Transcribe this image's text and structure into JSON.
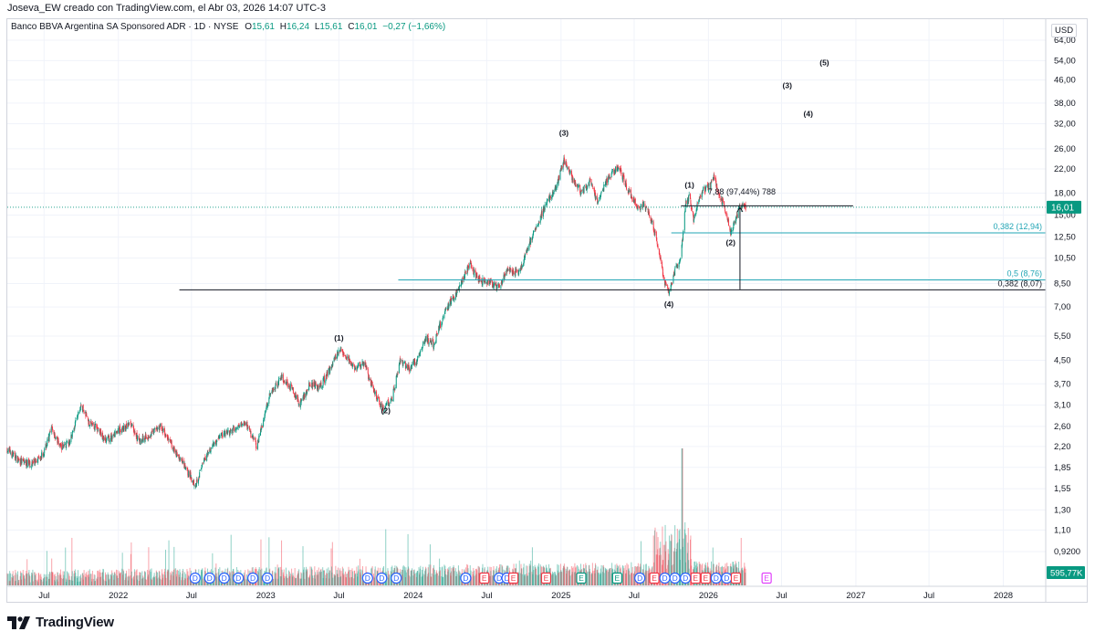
{
  "header": {
    "author_line": "Joseva_EW creado con TradingView.com, el Abr 03, 2026 14:07 UTC-3"
  },
  "legend": {
    "instrument": "Banco BBVA Argentina SA Sponsored ADR · 1D · NYSE",
    "open_label": "O",
    "open": "15,61",
    "high_label": "H",
    "high": "16,24",
    "low_label": "L",
    "low": "15,61",
    "close_label": "C",
    "close": "16,01",
    "change": "−0,27 (−1,66%)"
  },
  "currency": "USD",
  "price_badge": "16,01",
  "volume_badge": "595,77K",
  "brand": {
    "name": "TradingView"
  },
  "colors": {
    "up": "#089981",
    "down": "#f23645",
    "teal": "#22a5b5",
    "line": "#131722",
    "dividend": "#2962ff",
    "earnings_up": "#089981",
    "earnings_down": "#f23645",
    "earnings_future": "#e040fb"
  },
  "chart_data": {
    "type": "candlestick",
    "y_scale": "log",
    "y_ticks": [
      "64,00",
      "54,00",
      "46,00",
      "38,00",
      "32,00",
      "26,00",
      "22,00",
      "18,00",
      "15,00",
      "12,50",
      "10,50",
      "8,50",
      "7,00",
      "5,50",
      "4,50",
      "3,70",
      "3,10",
      "2,60",
      "2,20",
      "1,85",
      "1,55",
      "1,30",
      "1,10",
      "0,9200"
    ],
    "x_ticks": [
      "Jul",
      "2022",
      "Jul",
      "2023",
      "Jul",
      "2024",
      "Jul",
      "2025",
      "Jul",
      "2026",
      "Jul",
      "2027",
      "Jul",
      "2028"
    ],
    "price_path": [
      [
        "2021-04-01",
        2.15
      ],
      [
        "2021-05-01",
        1.95
      ],
      [
        "2021-06-01",
        1.9
      ],
      [
        "2021-07-01",
        2.1
      ],
      [
        "2021-07-20",
        2.55
      ],
      [
        "2021-08-10",
        2.2
      ],
      [
        "2021-09-01",
        2.25
      ],
      [
        "2021-10-01",
        3.1
      ],
      [
        "2021-10-20",
        2.7
      ],
      [
        "2021-11-10",
        2.55
      ],
      [
        "2021-12-01",
        2.3
      ],
      [
        "2022-01-01",
        2.5
      ],
      [
        "2022-02-01",
        2.65
      ],
      [
        "2022-02-20",
        2.3
      ],
      [
        "2022-03-15",
        2.4
      ],
      [
        "2022-04-15",
        2.6
      ],
      [
        "2022-05-15",
        2.2
      ],
      [
        "2022-06-15",
        1.85
      ],
      [
        "2022-07-10",
        1.6
      ],
      [
        "2022-08-10",
        2.1
      ],
      [
        "2022-09-10",
        2.4
      ],
      [
        "2022-10-10",
        2.5
      ],
      [
        "2022-11-10",
        2.7
      ],
      [
        "2022-12-10",
        2.2
      ],
      [
        "2023-01-10",
        3.4
      ],
      [
        "2023-02-10",
        3.9
      ],
      [
        "2023-03-10",
        3.5
      ],
      [
        "2023-03-25",
        3.1
      ],
      [
        "2023-04-20",
        3.7
      ],
      [
        "2023-05-15",
        3.6
      ],
      [
        "2023-06-10",
        4.2
      ],
      [
        "2023-07-01",
        4.9
      ],
      [
        "2023-07-20",
        4.6
      ],
      [
        "2023-08-10",
        4.2
      ],
      [
        "2023-09-01",
        4.4
      ],
      [
        "2023-10-01",
        3.3
      ],
      [
        "2023-10-20",
        3.0
      ],
      [
        "2023-11-10",
        3.3
      ],
      [
        "2023-11-30",
        4.5
      ],
      [
        "2023-12-20",
        4.2
      ],
      [
        "2024-01-10",
        4.5
      ],
      [
        "2024-02-01",
        5.4
      ],
      [
        "2024-02-20",
        5.1
      ],
      [
        "2024-03-20",
        6.8
      ],
      [
        "2024-04-20",
        8.0
      ],
      [
        "2024-05-20",
        10.0
      ],
      [
        "2024-06-10",
        8.8
      ],
      [
        "2024-07-10",
        8.5
      ],
      [
        "2024-08-01",
        8.2
      ],
      [
        "2024-08-20",
        9.5
      ],
      [
        "2024-09-20",
        9.3
      ],
      [
        "2024-10-10",
        11.5
      ],
      [
        "2024-11-01",
        13.5
      ],
      [
        "2024-11-20",
        16.0
      ],
      [
        "2024-12-20",
        19.0
      ],
      [
        "2025-01-08",
        23.5
      ],
      [
        "2025-01-25",
        21.0
      ],
      [
        "2025-02-20",
        18.0
      ],
      [
        "2025-03-15",
        20.0
      ],
      [
        "2025-04-01",
        16.5
      ],
      [
        "2025-04-20",
        19.5
      ],
      [
        "2025-05-10",
        21.5
      ],
      [
        "2025-05-25",
        22.3
      ],
      [
        "2025-06-15",
        18.5
      ],
      [
        "2025-07-10",
        16.0
      ],
      [
        "2025-07-25",
        16.5
      ],
      [
        "2025-08-15",
        14.0
      ],
      [
        "2025-09-01",
        11.0
      ],
      [
        "2025-09-15",
        8.5
      ],
      [
        "2025-09-25",
        7.8
      ],
      [
        "2025-10-10",
        9.5
      ],
      [
        "2025-10-25",
        10.5
      ],
      [
        "2025-11-05",
        16.5
      ],
      [
        "2025-11-15",
        17.5
      ],
      [
        "2025-11-25",
        14.5
      ],
      [
        "2025-12-05",
        16.5
      ],
      [
        "2025-12-20",
        18.5
      ],
      [
        "2026-01-05",
        19.0
      ],
      [
        "2026-01-15",
        21.0
      ],
      [
        "2026-01-25",
        18.0
      ],
      [
        "2026-02-10",
        16.0
      ],
      [
        "2026-02-25",
        13.0
      ],
      [
        "2026-03-10",
        14.5
      ],
      [
        "2026-03-20",
        16.2
      ],
      [
        "2026-04-03",
        16.01
      ]
    ],
    "wave_labels": [
      {
        "label": "(1)",
        "date": "2023-07-01",
        "price": 5.3,
        "position": "above"
      },
      {
        "label": "(2)",
        "date": "2023-10-25",
        "price": 2.9,
        "position": "below"
      },
      {
        "label": "(3)",
        "date": "2025-01-08",
        "price": 29.0,
        "position": "above"
      },
      {
        "label": "(4)",
        "date": "2025-09-25",
        "price": 7.0,
        "position": "below"
      },
      {
        "label": "(1)",
        "date": "2025-11-15",
        "price": 18.8,
        "position": "above"
      },
      {
        "label": "(2)",
        "date": "2026-02-25",
        "price": 11.7,
        "position": "below"
      },
      {
        "label": "(3)",
        "date": "2026-07-15",
        "price": 43.0,
        "position": "projected"
      },
      {
        "label": "(4)",
        "date": "2026-09-05",
        "price": 34.0,
        "position": "projected"
      },
      {
        "label": "(5)",
        "date": "2026-10-15",
        "price": 52.0,
        "position": "projected"
      }
    ],
    "fib_levels": [
      {
        "label": "0,382 (12,94)",
        "price": 12.94,
        "from": "2025-10-01",
        "to": "2028-04-15",
        "color": "teal"
      },
      {
        "label": "0,5 (8,76)",
        "price": 8.76,
        "from": "2023-11-25",
        "to": "2028-04-15",
        "color": "teal"
      },
      {
        "label": "0,382 (8,07)",
        "price": 8.07,
        "from": "2022-06-01",
        "to": "2028-04-15",
        "color": "dark"
      },
      {
        "label": "",
        "price": 16.2,
        "from": "2025-10-25",
        "to": "2026-12-25",
        "color": "dark"
      }
    ],
    "measure": {
      "label": "7,88 (97,44%) 788",
      "date": "2026-03-20",
      "from_price": 8.1,
      "to_price": 16.0
    },
    "events": [
      {
        "date": "2022-07-10",
        "type": "D"
      },
      {
        "date": "2022-08-15",
        "type": "D"
      },
      {
        "date": "2022-09-20",
        "type": "D"
      },
      {
        "date": "2022-10-25",
        "type": "D"
      },
      {
        "date": "2022-11-30",
        "type": "D"
      },
      {
        "date": "2023-01-05",
        "type": "D"
      },
      {
        "date": "2023-09-10",
        "type": "D"
      },
      {
        "date": "2023-10-15",
        "type": "D"
      },
      {
        "date": "2023-11-20",
        "type": "D"
      },
      {
        "date": "2024-05-10",
        "type": "D"
      },
      {
        "date": "2024-06-25",
        "type": "E"
      },
      {
        "date": "2024-08-01",
        "type": "D"
      },
      {
        "date": "2024-08-20",
        "type": "D"
      },
      {
        "date": "2024-09-05",
        "type": "E"
      },
      {
        "date": "2024-11-25",
        "type": "E"
      },
      {
        "date": "2025-02-20",
        "type": "E"
      },
      {
        "date": "2025-05-20",
        "type": "E"
      },
      {
        "date": "2025-07-15",
        "type": "D"
      },
      {
        "date": "2025-08-20",
        "type": "E"
      },
      {
        "date": "2025-09-15",
        "type": "D"
      },
      {
        "date": "2025-10-10",
        "type": "D"
      },
      {
        "date": "2025-11-05",
        "type": "D"
      },
      {
        "date": "2025-11-30",
        "type": "E"
      },
      {
        "date": "2025-12-25",
        "type": "E"
      },
      {
        "date": "2026-01-20",
        "type": "D"
      },
      {
        "date": "2026-02-15",
        "type": "D"
      },
      {
        "date": "2026-03-10",
        "type": "E"
      },
      {
        "date": "2026-05-25",
        "type": "E-future"
      }
    ]
  }
}
